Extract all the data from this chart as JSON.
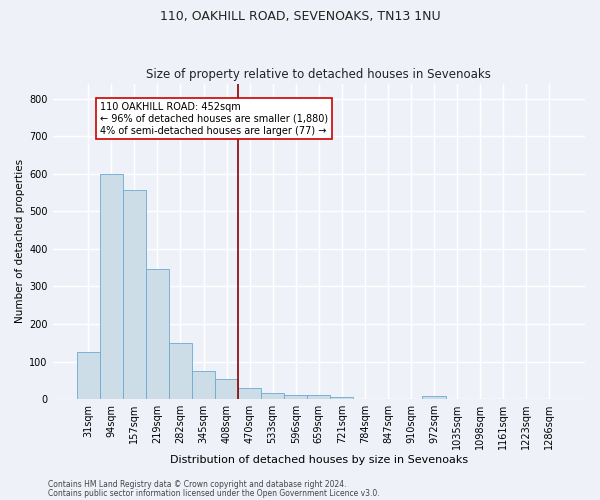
{
  "title1": "110, OAKHILL ROAD, SEVENOAKS, TN13 1NU",
  "title2": "Size of property relative to detached houses in Sevenoaks",
  "xlabel": "Distribution of detached houses by size in Sevenoaks",
  "ylabel": "Number of detached properties",
  "categories": [
    "31sqm",
    "94sqm",
    "157sqm",
    "219sqm",
    "282sqm",
    "345sqm",
    "408sqm",
    "470sqm",
    "533sqm",
    "596sqm",
    "659sqm",
    "721sqm",
    "784sqm",
    "847sqm",
    "910sqm",
    "972sqm",
    "1035sqm",
    "1098sqm",
    "1161sqm",
    "1223sqm",
    "1286sqm"
  ],
  "values": [
    125,
    600,
    557,
    347,
    150,
    76,
    53,
    30,
    15,
    12,
    12,
    5,
    0,
    0,
    0,
    8,
    0,
    0,
    0,
    0,
    0
  ],
  "bar_color": "#ccdde8",
  "bar_edge_color": "#6aaad4",
  "vline_color": "#8b0000",
  "vline_x": 6.5,
  "annotation_text": "110 OAKHILL ROAD: 452sqm\n← 96% of detached houses are smaller (1,880)\n4% of semi-detached houses are larger (77) →",
  "annotation_box_color": "#ffffff",
  "annotation_box_edge": "#cc0000",
  "ylim": [
    0,
    840
  ],
  "yticks": [
    0,
    100,
    200,
    300,
    400,
    500,
    600,
    700,
    800
  ],
  "footer1": "Contains HM Land Registry data © Crown copyright and database right 2024.",
  "footer2": "Contains public sector information licensed under the Open Government Licence v3.0.",
  "bg_color": "#eef2f8",
  "grid_color": "#ffffff",
  "title1_fontsize": 9,
  "title2_fontsize": 8.5,
  "xlabel_fontsize": 8,
  "ylabel_fontsize": 7.5,
  "tick_fontsize": 7,
  "annotation_fontsize": 7,
  "footer_fontsize": 5.5
}
